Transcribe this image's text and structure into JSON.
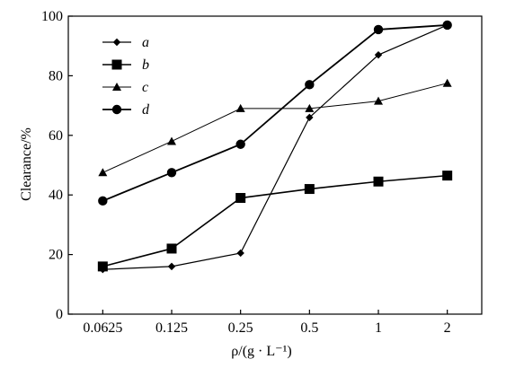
{
  "chart_data": {
    "type": "line",
    "xlabel": "ρ/(g · L⁻¹)",
    "ylabel": "Clearance/%",
    "categories": [
      "0.0625",
      "0.125",
      "0.25",
      "0.5",
      "1",
      "2"
    ],
    "ylim": [
      0,
      100
    ],
    "yticks": [
      0,
      20,
      40,
      60,
      80,
      100
    ],
    "grid": false,
    "legend_position": "top-left",
    "series": [
      {
        "name": "a",
        "marker": "diamond",
        "values": [
          15,
          16,
          20.5,
          66,
          87,
          97
        ]
      },
      {
        "name": "b",
        "marker": "square",
        "values": [
          16,
          22,
          39,
          42,
          44.5,
          46.5
        ]
      },
      {
        "name": "c",
        "marker": "triangle",
        "values": [
          47.5,
          58,
          69,
          69,
          71.5,
          77.5
        ]
      },
      {
        "name": "d",
        "marker": "circle",
        "values": [
          38,
          47.5,
          57,
          77,
          95.5,
          97
        ]
      }
    ]
  }
}
